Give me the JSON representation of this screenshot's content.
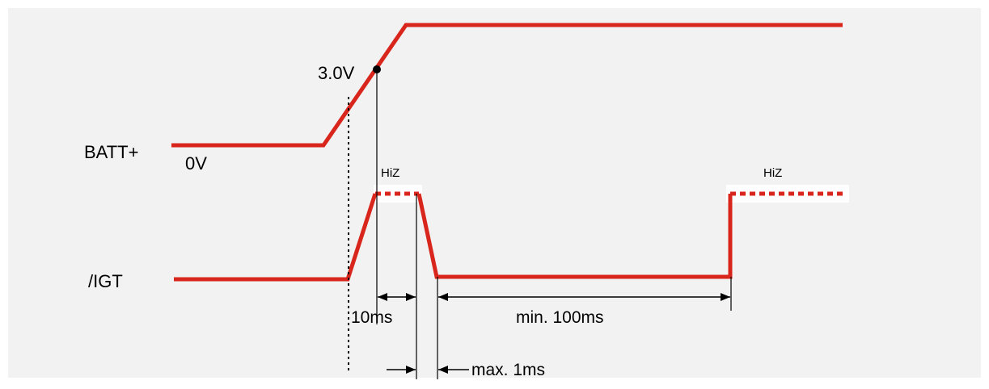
{
  "colors": {
    "background_panel": "#f2f2f2",
    "page": "#ffffff",
    "signal": "#d9261c",
    "ink": "#000000"
  },
  "signals": {
    "batt": {
      "name": "BATT+",
      "low_level": "0V",
      "threshold": "3.0V"
    },
    "igt": {
      "name": "/IGT",
      "state_first": "HiZ",
      "state_second": "HiZ"
    }
  },
  "timings": {
    "pulse_width": "10ms",
    "low_duration": "min. 100ms",
    "fall_time": "max. 1ms"
  }
}
